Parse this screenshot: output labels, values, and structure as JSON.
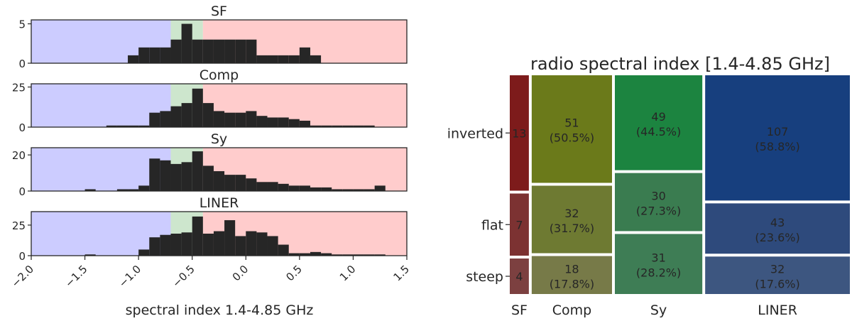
{
  "chart_data": [
    {
      "type": "bar",
      "subtype": "histogram-stack",
      "xlabel": "spectral index 1.4-4.85 GHz",
      "xlim": [
        -2.0,
        1.5
      ],
      "xticks": [
        "−2.0",
        "−1.5",
        "−1.0",
        "−0.5",
        "0.0",
        "0.5",
        "1.0",
        "1.5"
      ],
      "bin_width": 0.1,
      "bin_starts": [
        -1.7,
        -1.6,
        -1.5,
        -1.4,
        -1.3,
        -1.2,
        -1.1,
        -1.0,
        -0.9,
        -0.8,
        -0.7,
        -0.6,
        -0.5,
        -0.4,
        -0.3,
        -0.2,
        -0.1,
        0.0,
        0.1,
        0.2,
        0.3,
        0.4,
        0.5,
        0.6,
        0.7,
        0.8,
        0.9,
        1.0,
        1.1,
        1.2,
        1.3
      ],
      "regions": [
        {
          "name": "steep",
          "from": -2.0,
          "to": -0.7,
          "color": "#ccccff"
        },
        {
          "name": "flat",
          "from": -0.7,
          "to": -0.4,
          "color": "#cde6cd"
        },
        {
          "name": "inverted",
          "from": -0.4,
          "to": 1.5,
          "color": "#ffcccc"
        }
      ],
      "bar_color": "#262626",
      "panels": [
        {
          "title": "SF",
          "ylim": [
            0,
            5.5
          ],
          "yticks": [
            0,
            5
          ],
          "counts": [
            0,
            0,
            0,
            0,
            0,
            0,
            1,
            2,
            2,
            2,
            3,
            5,
            3,
            3,
            3,
            3,
            3,
            3,
            1,
            1,
            1,
            1,
            2,
            1,
            0,
            0,
            0,
            0,
            0,
            0,
            0
          ]
        },
        {
          "title": "Comp",
          "ylim": [
            0,
            27
          ],
          "yticks": [
            0,
            25
          ],
          "counts": [
            0,
            0,
            0,
            0,
            1,
            1,
            1,
            1,
            9,
            10,
            13,
            15,
            24,
            15,
            10,
            9,
            9,
            10,
            7,
            6,
            6,
            5,
            4,
            1,
            1,
            1,
            1,
            1,
            1,
            0,
            0
          ]
        },
        {
          "title": "Sy",
          "ylim": [
            0,
            24
          ],
          "yticks": [
            0,
            20
          ],
          "counts": [
            0,
            0,
            1,
            0,
            0,
            1,
            1,
            3,
            18,
            17,
            15,
            16,
            22,
            14,
            11,
            9,
            9,
            7,
            5,
            5,
            4,
            3,
            3,
            2,
            2,
            1,
            1,
            1,
            1,
            3,
            0
          ]
        },
        {
          "title": "LINER",
          "ylim": [
            0,
            36
          ],
          "yticks": [
            0,
            25
          ],
          "counts": [
            0,
            0,
            1,
            0,
            0,
            0,
            0,
            5,
            15,
            17,
            18,
            19,
            32,
            18,
            20,
            29,
            16,
            20,
            19,
            16,
            9,
            2,
            2,
            3,
            2,
            1,
            1,
            1,
            1,
            1,
            0
          ]
        }
      ]
    },
    {
      "type": "mosaic",
      "title": "radio spectral index [1.4-4.85 GHz]",
      "categories": [
        "SF",
        "Comp",
        "Sy",
        "LINER"
      ],
      "totals": [
        24,
        101,
        110,
        182
      ],
      "rows": [
        "inverted",
        "flat",
        "steep"
      ],
      "cells": [
        {
          "category": "SF",
          "row_counts": [
            13,
            7,
            4
          ],
          "row_labels": [
            "13",
            "7",
            "4"
          ],
          "row_pcts": [
            "",
            "",
            ""
          ],
          "colors": [
            "#7d1b1b",
            "#7c3232",
            "#7c4040"
          ]
        },
        {
          "category": "Comp",
          "row_counts": [
            51,
            32,
            18
          ],
          "row_labels": [
            "51",
            "32",
            "18"
          ],
          "row_pcts": [
            "(50.5%)",
            "(31.7%)",
            "(17.8%)"
          ],
          "colors": [
            "#6b7a1a",
            "#6e7a32",
            "#777a48"
          ]
        },
        {
          "category": "Sy",
          "row_counts": [
            49,
            30,
            31
          ],
          "row_labels": [
            "49",
            "30",
            "31"
          ],
          "row_pcts": [
            "(44.5%)",
            "(27.3%)",
            "(28.2%)"
          ],
          "colors": [
            "#1c8440",
            "#3a7c50",
            "#3e7d55"
          ]
        },
        {
          "category": "LINER",
          "row_counts": [
            107,
            43,
            32
          ],
          "row_labels": [
            "107",
            "43",
            "32"
          ],
          "row_pcts": [
            "(58.8%)",
            "(23.6%)",
            "(17.6%)"
          ],
          "colors": [
            "#173f7e",
            "#2e4a7c",
            "#3d5680"
          ]
        }
      ]
    }
  ]
}
